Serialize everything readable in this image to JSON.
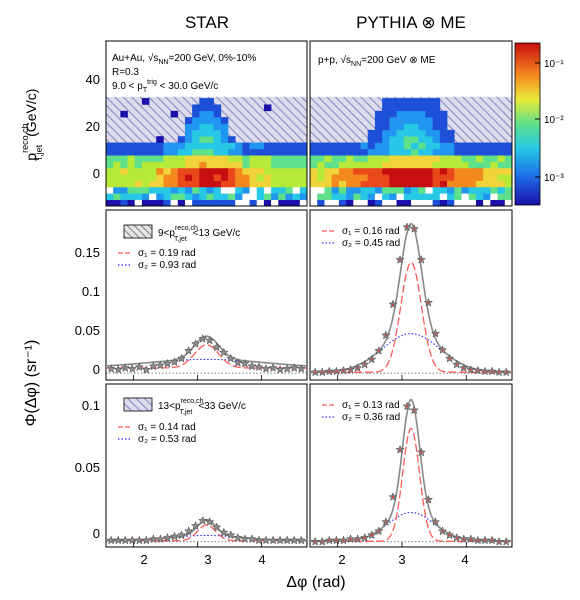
{
  "columns": {
    "left": "STAR",
    "right": "PYTHIA ⊗ ME"
  },
  "axes": {
    "xlabel": "Δφ (rad)",
    "ylabel_map": "p",
    "ylabel_map_sup": "reco,ch",
    "ylabel_map_sub": "T,jet",
    "ylabel_map_unit": "(GeV/c)",
    "ylabel_curve": "Φ(Δφ) (sr⁻¹)",
    "map_y_ticks": [
      "0",
      "20",
      "40"
    ],
    "mid_y_ticks": [
      "0",
      "0.05",
      "0.1",
      "0.15"
    ],
    "bot_y_ticks": [
      "0",
      "0.05",
      "0.1"
    ],
    "x_ticks": [
      "2",
      "3",
      "4"
    ],
    "colorbar_ticks": [
      "10⁻¹",
      "10⁻²",
      "10⁻³"
    ]
  },
  "labels": {
    "left_map_line1": "Au+Au, √s",
    "left_map_line1_sub": "NN",
    "left_map_line1_rest": "=200 GeV, 0%-10%",
    "left_map_line2": "R=0.3",
    "left_map_line3": "9.0 < p",
    "left_map_line3_sub": "T",
    "left_map_line3_sup": "trig",
    "left_map_line3_rest": " < 30.0 GeV/c",
    "right_map_line1": "p+p, √s",
    "right_map_line1_sub": "NN",
    "right_map_line1_rest": "=200 GeV ⊗ ME",
    "mid_legend_pre": "9<p",
    "mid_legend_sup": "reco,ch",
    "mid_legend_sub": "T,jet",
    "mid_legend_post": "<13 GeV/c",
    "bot_legend_pre": "13<p",
    "bot_legend_sup": "reco,ch",
    "bot_legend_sub": "T,jet",
    "bot_legend_post": "<33 GeV/c"
  },
  "chart_data": [
    {
      "type": "heatmap",
      "panel": "STAR",
      "xlim": [
        1.57,
        4.71
      ],
      "ylim": [
        -10,
        55
      ],
      "hatched_region_y": [
        15,
        33
      ],
      "ridge_y_center": 0,
      "color_scale": "log",
      "zlim": [
        0.0003,
        0.2
      ]
    },
    {
      "type": "heatmap",
      "panel": "PYTHIA ⊗ ME",
      "xlim": [
        1.57,
        4.71
      ],
      "ylim": [
        -10,
        55
      ],
      "hatched_region_y": [
        15,
        33
      ],
      "ridge_y_center": 0,
      "color_scale": "log",
      "zlim": [
        0.0003,
        0.2
      ]
    },
    {
      "type": "line",
      "panel": "STAR",
      "bin": "9<pT,jet<13 GeV/c",
      "sigma": [
        "σ₁ = 0.19 rad",
        "σ₂ = 0.93 rad"
      ],
      "xlim": [
        1.57,
        4.71
      ],
      "ylim": [
        -0.008,
        0.19
      ],
      "params": {
        "a1": 0.027,
        "s1": 0.19,
        "a2": 0.01,
        "s2": 0.93,
        "base": 0.006
      },
      "x": [
        1.65,
        1.76,
        1.87,
        1.98,
        2.09,
        2.2,
        2.31,
        2.42,
        2.53,
        2.64,
        2.75,
        2.86,
        2.97,
        3.08,
        3.19,
        3.3,
        3.41,
        3.52,
        3.63,
        3.74,
        3.85,
        3.96,
        4.07,
        4.18,
        4.29,
        4.4,
        4.51,
        4.62
      ],
      "y": [
        0.005,
        0.004,
        0.006,
        0.005,
        0.007,
        0.004,
        0.008,
        0.009,
        0.011,
        0.013,
        0.017,
        0.026,
        0.034,
        0.04,
        0.038,
        0.03,
        0.024,
        0.017,
        0.012,
        0.011,
        0.008,
        0.007,
        0.005,
        0.006,
        0.004,
        0.005,
        0.006,
        0.005
      ]
    },
    {
      "type": "line",
      "panel": "PYTHIA ⊗ ME",
      "bin": "9<pT,jet<13 GeV/c",
      "sigma": [
        "σ₁ = 0.16 rad",
        "σ₂ = 0.45 rad"
      ],
      "xlim": [
        1.57,
        4.71
      ],
      "ylim": [
        -0.008,
        0.19
      ],
      "params": {
        "a1": 0.128,
        "s1": 0.16,
        "a2": 0.045,
        "s2": 0.45,
        "base": 0.001
      },
      "x": [
        1.65,
        1.76,
        1.87,
        1.98,
        2.09,
        2.2,
        2.31,
        2.42,
        2.53,
        2.64,
        2.75,
        2.86,
        2.97,
        3.08,
        3.19,
        3.3,
        3.41,
        3.52,
        3.63,
        3.74,
        3.85,
        3.96,
        4.07,
        4.18,
        4.29,
        4.4,
        4.51,
        4.62
      ],
      "y": [
        0.001,
        0.001,
        0.002,
        0.002,
        0.003,
        0.004,
        0.006,
        0.01,
        0.016,
        0.026,
        0.044,
        0.08,
        0.132,
        0.17,
        0.168,
        0.132,
        0.082,
        0.046,
        0.027,
        0.017,
        0.01,
        0.006,
        0.004,
        0.003,
        0.002,
        0.002,
        0.001,
        0.001
      ]
    },
    {
      "type": "line",
      "panel": "STAR",
      "bin": "13<pT,jet<33 GeV/c",
      "sigma": [
        "σ₁ = 0.14 rad",
        "σ₂ = 0.53 rad"
      ],
      "xlim": [
        1.57,
        4.71
      ],
      "ylim": [
        -0.004,
        0.12
      ],
      "params": {
        "a1": 0.012,
        "s1": 0.14,
        "a2": 0.004,
        "s2": 0.53,
        "base": 0.0008
      },
      "x": [
        1.65,
        1.76,
        1.87,
        1.98,
        2.09,
        2.2,
        2.31,
        2.42,
        2.53,
        2.64,
        2.75,
        2.86,
        2.97,
        3.08,
        3.19,
        3.3,
        3.41,
        3.52,
        3.63,
        3.74,
        3.85,
        3.96,
        4.07,
        4.18,
        4.29,
        4.4,
        4.51,
        4.62
      ],
      "y": [
        0.001,
        0.001,
        0.001,
        0.001,
        0.001,
        0.001,
        0.002,
        0.002,
        0.003,
        0.004,
        0.005,
        0.008,
        0.012,
        0.016,
        0.015,
        0.011,
        0.007,
        0.005,
        0.003,
        0.002,
        0.002,
        0.001,
        0.001,
        0.001,
        0.001,
        0.001,
        0.001,
        0.001
      ]
    },
    {
      "type": "line",
      "panel": "PYTHIA ⊗ ME",
      "bin": "13<pT,jet<33 GeV/c",
      "sigma": [
        "σ₁ = 0.13 rad",
        "σ₂ = 0.36 rad"
      ],
      "xlim": [
        1.57,
        4.71
      ],
      "ylim": [
        -0.004,
        0.12
      ],
      "params": {
        "a1": 0.086,
        "s1": 0.13,
        "a2": 0.022,
        "s2": 0.36,
        "base": 0.0003
      },
      "x": [
        1.65,
        1.76,
        1.87,
        1.98,
        2.09,
        2.2,
        2.31,
        2.42,
        2.53,
        2.64,
        2.75,
        2.86,
        2.97,
        3.08,
        3.19,
        3.3,
        3.41,
        3.52,
        3.63,
        3.74,
        3.85,
        3.96,
        4.07,
        4.18,
        4.29,
        4.4,
        4.51,
        4.62
      ],
      "y": [
        0.0,
        0.0,
        0.001,
        0.001,
        0.001,
        0.002,
        0.002,
        0.003,
        0.005,
        0.008,
        0.015,
        0.034,
        0.07,
        0.103,
        0.1,
        0.068,
        0.032,
        0.015,
        0.008,
        0.005,
        0.003,
        0.002,
        0.002,
        0.001,
        0.001,
        0.001,
        0.0,
        0.0
      ]
    }
  ],
  "colors": {
    "data_fill": "#8a8a8a",
    "data_edge": "#444444",
    "total_fit": "#888888",
    "narrow_fit": "#ff5a5a",
    "wide_fit": "#2c2cff",
    "hatch": "#8a8cc4"
  }
}
